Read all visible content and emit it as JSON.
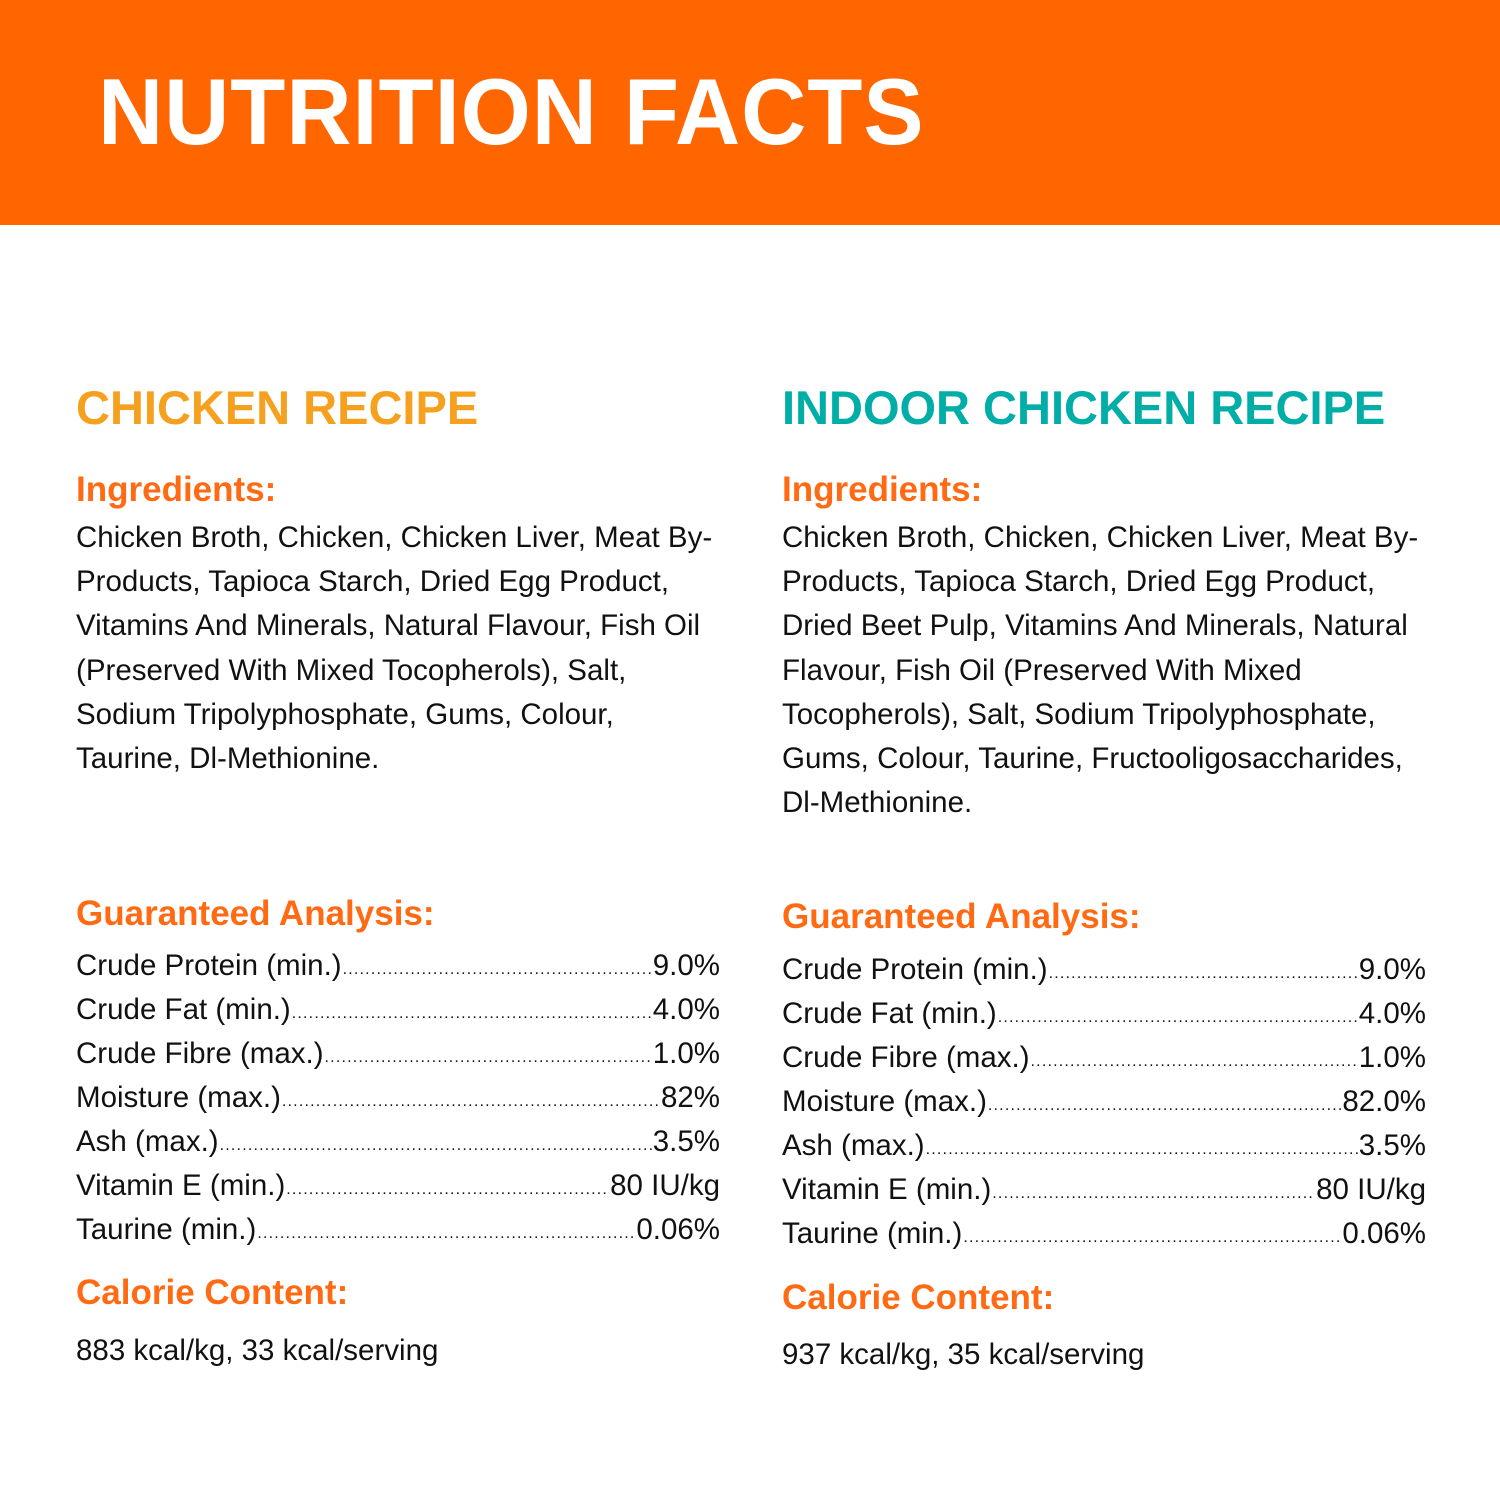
{
  "header": {
    "title": "NUTRITION FACTS",
    "background_color": "#FF6600",
    "title_color": "#FFFFFF"
  },
  "colors": {
    "chicken_recipe_title": "#F5A11F",
    "indoor_recipe_title": "#00ADA7",
    "section_heading": "#FF6A13",
    "body_text": "#111111"
  },
  "recipes": [
    {
      "title": "CHICKEN RECIPE",
      "ingredients_heading": "Ingredients:",
      "ingredients": "Chicken Broth, Chicken, Chicken Liver, Meat By-Products, Tapioca Starch, Dried Egg Product, Vitamins And Minerals, Natural Flavour, Fish Oil (Preserved With Mixed Tocopherols), Salt, Sodium Tripolyphosphate, Gums, Colour, Taurine, Dl-Methionine.",
      "analysis_heading": "Guaranteed Analysis:",
      "analysis": [
        {
          "label": "Crude Protein (min.)",
          "value": "9.0%"
        },
        {
          "label": "Crude Fat (min.)",
          "value": "4.0%"
        },
        {
          "label": "Crude Fibre (max.)",
          "value": "1.0%"
        },
        {
          "label": "Moisture (max.)",
          "value": "82%"
        },
        {
          "label": "Ash (max.)",
          "value": "3.5%"
        },
        {
          "label": "Vitamin E (min.)",
          "value": "80 IU/kg"
        },
        {
          "label": "Taurine (min.)",
          "value": "0.06%"
        }
      ],
      "calorie_heading": "Calorie Content:",
      "calorie_content": "883 kcal/kg, 33 kcal/serving"
    },
    {
      "title": "INDOOR CHICKEN RECIPE",
      "ingredients_heading": "Ingredients:",
      "ingredients": "Chicken Broth, Chicken, Chicken Liver, Meat By-Products, Tapioca Starch, Dried Egg Product, Dried Beet Pulp, Vitamins And Minerals, Natural Flavour, Fish Oil (Preserved With Mixed Tocopherols), Salt, Sodium Tripolyphosphate, Gums, Colour, Taurine, Fructooligosaccharides, Dl-Methionine.",
      "analysis_heading": "Guaranteed Analysis:",
      "analysis": [
        {
          "label": "Crude Protein (min.)",
          "value": "9.0%"
        },
        {
          "label": "Crude Fat (min.)",
          "value": "4.0%"
        },
        {
          "label": "Crude Fibre (max.)",
          "value": "1.0%"
        },
        {
          "label": "Moisture (max.)",
          "value": "82.0%"
        },
        {
          "label": "Ash (max.)",
          "value": "3.5%"
        },
        {
          "label": "Vitamin E (min.)",
          "value": "80 IU/kg"
        },
        {
          "label": "Taurine (min.)",
          "value": "0.06%"
        }
      ],
      "calorie_heading": "Calorie Content:",
      "calorie_content": "937 kcal/kg, 35 kcal/serving"
    }
  ],
  "leader_dots": "......................................................................................................................................."
}
